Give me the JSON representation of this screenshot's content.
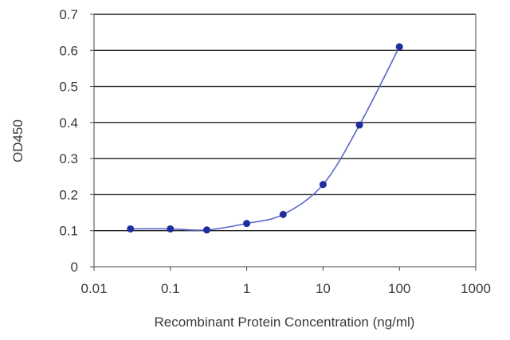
{
  "chart_data": {
    "type": "scatter",
    "title": "",
    "xlabel": "Recombinant Protein Concentration (ng/ml)",
    "ylabel": "OD450",
    "x_scale": "log",
    "xlim": [
      0.01,
      1000
    ],
    "ylim": [
      0,
      0.7
    ],
    "grid": "horizontal",
    "x_ticks": [
      0.01,
      0.1,
      1,
      10,
      100,
      1000
    ],
    "x_tick_labels": [
      "0.01",
      "0.1",
      "1",
      "10",
      "100",
      "1000"
    ],
    "y_ticks": [
      0,
      0.1,
      0.2,
      0.3,
      0.4,
      0.5,
      0.6,
      0.7
    ],
    "y_tick_labels": [
      "0",
      "0.1",
      "0.2",
      "0.3",
      "0.4",
      "0.5",
      "0.6",
      "0.7"
    ],
    "series": [
      {
        "x": [
          0.03,
          0.1,
          0.3,
          1,
          3,
          10,
          30,
          100
        ],
        "y": [
          0.105,
          0.105,
          0.102,
          0.12,
          0.145,
          0.228,
          0.393,
          0.61
        ]
      }
    ],
    "colors": {
      "series": "#1f2e9e",
      "curve": "#5a66c8",
      "grid": "#222222",
      "axis": "#444444",
      "text": "#3a3a3a"
    }
  }
}
